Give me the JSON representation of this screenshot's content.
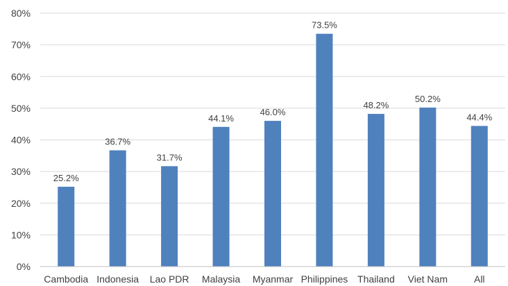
{
  "chart_data": {
    "type": "bar",
    "title": "",
    "xlabel": "",
    "ylabel": "",
    "categories": [
      "Cambodia",
      "Indonesia",
      "Lao PDR",
      "Malaysia",
      "Myanmar",
      "Philippines",
      "Thailand",
      "Viet Nam",
      "All"
    ],
    "values": [
      25.2,
      36.7,
      31.7,
      44.1,
      46.0,
      73.5,
      48.2,
      50.2,
      44.4
    ],
    "data_labels": [
      "25.2%",
      "36.7%",
      "31.7%",
      "44.1%",
      "46.0%",
      "73.5%",
      "48.2%",
      "50.2%",
      "44.4%"
    ],
    "ylim": [
      0,
      80
    ],
    "yticks": [
      0,
      10,
      20,
      30,
      40,
      50,
      60,
      70,
      80
    ],
    "ytick_labels": [
      "0%",
      "10%",
      "20%",
      "30%",
      "40%",
      "50%",
      "60%",
      "70%",
      "80%"
    ],
    "grid": true,
    "legend": "none",
    "bar_color": "#4f81bd"
  }
}
